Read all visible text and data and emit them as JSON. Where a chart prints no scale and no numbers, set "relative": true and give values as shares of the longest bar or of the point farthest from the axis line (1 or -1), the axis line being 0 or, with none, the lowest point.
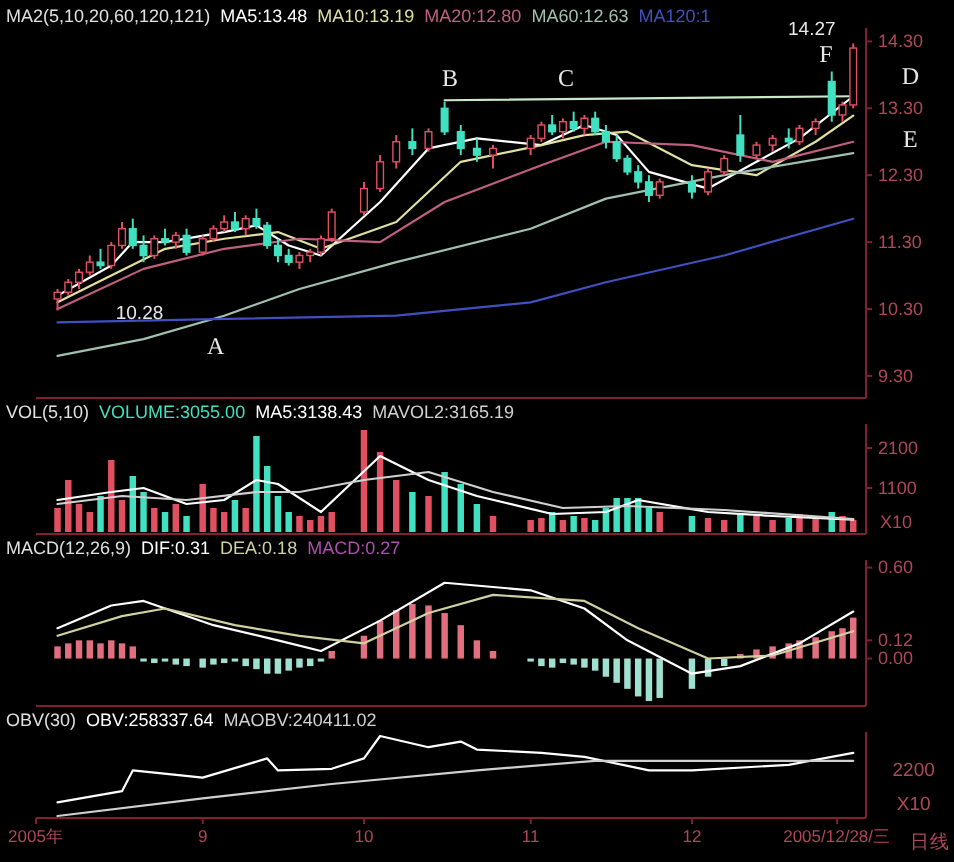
{
  "chart_data": [
    {
      "type": "candlestick",
      "title": "MA2(5,10,20,60,120,121)",
      "legend": "top left",
      "tick_labels": "y",
      "xlim": [
        "2005-08-01",
        "2006-01-02"
      ],
      "ylim": [
        9.0,
        14.5
      ],
      "yticks": [
        {
          "value": 9.3,
          "label": "9.30"
        },
        {
          "value": 10.3,
          "label": "10.30"
        },
        {
          "value": 11.3,
          "label": "11.30"
        },
        {
          "value": 12.3,
          "label": "12.30"
        },
        {
          "value": 13.3,
          "label": "13.30"
        },
        {
          "value": 14.3,
          "label": "14.30"
        }
      ],
      "x": [
        "2005-08-05",
        "2005-08-07",
        "2005-08-09",
        "2005-08-11",
        "2005-08-13",
        "2005-08-15",
        "2005-08-17",
        "2005-08-19",
        "2005-08-21",
        "2005-08-23",
        "2005-08-25",
        "2005-08-27",
        "2005-08-29",
        "2005-09-01",
        "2005-09-03",
        "2005-09-05",
        "2005-09-07",
        "2005-09-09",
        "2005-09-11",
        "2005-09-13",
        "2005-09-15",
        "2005-09-17",
        "2005-09-19",
        "2005-09-21",
        "2005-09-23",
        "2005-09-25",
        "2005-10-01",
        "2005-10-04",
        "2005-10-07",
        "2005-10-10",
        "2005-10-13",
        "2005-10-16",
        "2005-10-19",
        "2005-10-22",
        "2005-10-25",
        "2005-11-01",
        "2005-11-03",
        "2005-11-05",
        "2005-11-07",
        "2005-11-09",
        "2005-11-11",
        "2005-11-13",
        "2005-11-15",
        "2005-11-17",
        "2005-11-19",
        "2005-11-21",
        "2005-11-23",
        "2005-11-25",
        "2005-12-01",
        "2005-12-04",
        "2005-12-07",
        "2005-12-10",
        "2005-12-13",
        "2005-12-16",
        "2005-12-19",
        "2005-12-21",
        "2005-12-24",
        "2005-12-27",
        "2005-12-29",
        "2005-12-31"
      ],
      "ohlc": [
        [
          10.45,
          10.6,
          10.28,
          10.55
        ],
        [
          10.55,
          10.75,
          10.5,
          10.7
        ],
        [
          10.7,
          10.9,
          10.6,
          10.85
        ],
        [
          10.85,
          11.1,
          10.8,
          11.0
        ],
        [
          11.0,
          11.2,
          10.9,
          10.95
        ],
        [
          10.95,
          11.3,
          10.9,
          11.25
        ],
        [
          11.25,
          11.6,
          11.2,
          11.5
        ],
        [
          11.5,
          11.65,
          11.2,
          11.25
        ],
        [
          11.25,
          11.4,
          11.0,
          11.1
        ],
        [
          11.1,
          11.4,
          11.05,
          11.35
        ],
        [
          11.35,
          11.5,
          11.25,
          11.3
        ],
        [
          11.3,
          11.45,
          11.2,
          11.4
        ],
        [
          11.4,
          11.5,
          11.1,
          11.15
        ],
        [
          11.15,
          11.4,
          11.1,
          11.35
        ],
        [
          11.35,
          11.55,
          11.3,
          11.5
        ],
        [
          11.5,
          11.7,
          11.45,
          11.6
        ],
        [
          11.6,
          11.75,
          11.45,
          11.5
        ],
        [
          11.5,
          11.7,
          11.4,
          11.65
        ],
        [
          11.65,
          11.8,
          11.5,
          11.55
        ],
        [
          11.55,
          11.6,
          11.2,
          11.25
        ],
        [
          11.25,
          11.35,
          11.0,
          11.1
        ],
        [
          11.1,
          11.2,
          10.95,
          11.0
        ],
        [
          11.0,
          11.15,
          10.9,
          11.1
        ],
        [
          11.1,
          11.2,
          11.0,
          11.15
        ],
        [
          11.15,
          11.4,
          11.1,
          11.35
        ],
        [
          11.35,
          11.8,
          11.3,
          11.75
        ],
        [
          11.75,
          12.2,
          11.7,
          12.1
        ],
        [
          12.1,
          12.6,
          12.05,
          12.5
        ],
        [
          12.5,
          12.9,
          12.4,
          12.8
        ],
        [
          12.8,
          13.0,
          12.6,
          12.7
        ],
        [
          12.7,
          13.0,
          12.65,
          12.95
        ],
        [
          13.3,
          13.4,
          12.9,
          12.95
        ],
        [
          12.95,
          13.05,
          12.6,
          12.7
        ],
        [
          12.7,
          12.85,
          12.5,
          12.6
        ],
        [
          12.6,
          12.75,
          12.4,
          12.7
        ],
        [
          12.7,
          12.9,
          12.6,
          12.85
        ],
        [
          12.85,
          13.1,
          12.8,
          13.05
        ],
        [
          13.05,
          13.2,
          12.9,
          12.95
        ],
        [
          12.95,
          13.15,
          12.85,
          13.1
        ],
        [
          13.1,
          13.25,
          12.95,
          13.0
        ],
        [
          13.0,
          13.2,
          12.9,
          13.15
        ],
        [
          13.15,
          13.25,
          12.9,
          12.95
        ],
        [
          12.95,
          13.05,
          12.7,
          12.8
        ],
        [
          12.8,
          12.9,
          12.5,
          12.55
        ],
        [
          12.55,
          12.6,
          12.3,
          12.35
        ],
        [
          12.35,
          12.45,
          12.1,
          12.2
        ],
        [
          12.2,
          12.3,
          11.9,
          12.0
        ],
        [
          12.0,
          12.25,
          11.95,
          12.2
        ],
        [
          12.2,
          12.3,
          11.95,
          12.05
        ],
        [
          12.05,
          12.4,
          12.0,
          12.35
        ],
        [
          12.35,
          12.6,
          12.3,
          12.55
        ],
        [
          12.9,
          13.2,
          12.5,
          12.6
        ],
        [
          12.6,
          12.8,
          12.55,
          12.75
        ],
        [
          12.75,
          12.9,
          12.65,
          12.85
        ],
        [
          12.85,
          13.0,
          12.7,
          12.8
        ],
        [
          12.8,
          13.05,
          12.75,
          13.0
        ],
        [
          13.0,
          13.15,
          12.9,
          13.1
        ],
        [
          13.7,
          13.85,
          13.1,
          13.2
        ],
        [
          13.2,
          13.4,
          13.1,
          13.35
        ],
        [
          13.35,
          14.27,
          13.3,
          14.2
        ]
      ],
      "series": [
        {
          "type": "line",
          "name": "MA5:13.48",
          "color": "#ffffff",
          "x": [
            "2005-08-05",
            "2005-08-15",
            "2005-08-19",
            "2005-08-25",
            "2005-09-05",
            "2005-09-11",
            "2005-09-17",
            "2005-09-23",
            "2005-10-04",
            "2005-10-13",
            "2005-10-22",
            "2005-11-03",
            "2005-11-11",
            "2005-11-17",
            "2005-11-23",
            "2005-12-04",
            "2005-12-13",
            "2005-12-21",
            "2005-12-31"
          ],
          "values": [
            10.5,
            10.95,
            11.3,
            11.3,
            11.45,
            11.55,
            11.25,
            11.1,
            11.9,
            12.7,
            12.85,
            12.75,
            13.05,
            12.9,
            12.35,
            12.1,
            12.5,
            12.85,
            13.48
          ]
        },
        {
          "type": "line",
          "name": "MA10:13.19",
          "color": "#e0e0a0",
          "x": [
            "2005-08-05",
            "2005-08-15",
            "2005-08-25",
            "2005-09-05",
            "2005-09-15",
            "2005-09-23",
            "2005-10-07",
            "2005-10-19",
            "2005-11-03",
            "2005-11-11",
            "2005-11-19",
            "2005-12-01",
            "2005-12-13",
            "2005-12-24",
            "2005-12-31"
          ],
          "values": [
            10.4,
            10.8,
            11.2,
            11.35,
            11.45,
            11.2,
            11.6,
            12.5,
            12.75,
            12.9,
            12.95,
            12.45,
            12.3,
            12.8,
            13.19
          ]
        },
        {
          "type": "line",
          "name": "MA20:12.80",
          "color": "#c06080",
          "x": [
            "2005-08-05",
            "2005-08-21",
            "2005-09-05",
            "2005-09-19",
            "2005-10-04",
            "2005-10-16",
            "2005-11-03",
            "2005-11-15",
            "2005-12-01",
            "2005-12-16",
            "2005-12-31"
          ],
          "values": [
            10.3,
            10.9,
            11.2,
            11.35,
            11.3,
            11.9,
            12.45,
            12.8,
            12.75,
            12.5,
            12.8
          ]
        },
        {
          "type": "line",
          "name": "MA60:12.63",
          "color": "#a0c0b0",
          "x": [
            "2005-08-05",
            "2005-08-21",
            "2005-09-05",
            "2005-09-19",
            "2005-10-07",
            "2005-11-01",
            "2005-11-15",
            "2005-12-07",
            "2005-12-31"
          ],
          "values": [
            9.6,
            9.85,
            10.2,
            10.6,
            11.0,
            11.5,
            11.95,
            12.3,
            12.63
          ]
        },
        {
          "type": "line",
          "name": "MA120:1",
          "color": "#4050c0",
          "x": [
            "2005-08-05",
            "2005-09-03",
            "2005-10-07",
            "2005-11-01",
            "2005-11-15",
            "2005-12-07",
            "2005-12-31"
          ],
          "values": [
            10.1,
            10.15,
            10.2,
            10.4,
            10.7,
            11.1,
            11.65
          ]
        },
        {
          "type": "line",
          "color": "#c8e8c8",
          "x": [
            "2005-10-16",
            "2005-12-31"
          ],
          "values": [
            13.42,
            13.48
          ]
        }
      ],
      "annotations": [
        "10.28",
        "14.27",
        "A",
        "B",
        "C",
        "D",
        "E",
        "F"
      ]
    },
    {
      "type": "bar",
      "title": "VOL(5,10)",
      "legend": "top left",
      "tick_labels": "y",
      "xlim": [
        "2005-08-01",
        "2006-01-02"
      ],
      "ylim": [
        0,
        2700
      ],
      "yticks": [
        1100,
        2100
      ],
      "ylabel": "X10",
      "x": [
        "2005-08-05",
        "2005-08-07",
        "2005-08-09",
        "2005-08-11",
        "2005-08-13",
        "2005-08-15",
        "2005-08-17",
        "2005-08-19",
        "2005-08-21",
        "2005-08-23",
        "2005-08-25",
        "2005-08-27",
        "2005-08-29",
        "2005-09-01",
        "2005-09-03",
        "2005-09-05",
        "2005-09-07",
        "2005-09-09",
        "2005-09-11",
        "2005-09-13",
        "2005-09-15",
        "2005-09-17",
        "2005-09-19",
        "2005-09-21",
        "2005-09-23",
        "2005-09-25",
        "2005-10-01",
        "2005-10-04",
        "2005-10-07",
        "2005-10-10",
        "2005-10-13",
        "2005-10-16",
        "2005-10-19",
        "2005-10-22",
        "2005-10-25",
        "2005-11-01",
        "2005-11-03",
        "2005-11-05",
        "2005-11-07",
        "2005-11-09",
        "2005-11-11",
        "2005-11-13",
        "2005-11-15",
        "2005-11-17",
        "2005-11-19",
        "2005-11-21",
        "2005-11-23",
        "2005-11-25",
        "2005-12-01",
        "2005-12-04",
        "2005-12-07",
        "2005-12-10",
        "2005-12-13",
        "2005-12-16",
        "2005-12-19",
        "2005-12-21",
        "2005-12-24",
        "2005-12-27",
        "2005-12-29",
        "2005-12-31"
      ],
      "series": [
        {
          "type": "bar",
          "name": "VOLUME:3055.00",
          "color": "#40e0c0",
          "values": [
            600,
            1300,
            700,
            500,
            900,
            1800,
            800,
            1400,
            1000,
            600,
            500,
            700,
            400,
            1200,
            600,
            500,
            800,
            600,
            2400,
            1650,
            900,
            500,
            400,
            300,
            400,
            500,
            2550,
            2000,
            1300,
            1000,
            900,
            1500,
            1200,
            700,
            400,
            300,
            350,
            500,
            300,
            400,
            350,
            300,
            600,
            850,
            850,
            850,
            600,
            500,
            400,
            350,
            300,
            450,
            400,
            300,
            350,
            450,
            350,
            500,
            400,
            300
          ],
          "colors": [
            "#e05060",
            "#e05060",
            "#e05060",
            "#e05060",
            "#40e0c0",
            "#e05060",
            "#e05060",
            "#40e0c0",
            "#40e0c0",
            "#e05060",
            "#40e0c0",
            "#e05060",
            "#40e0c0",
            "#e05060",
            "#e05060",
            "#e05060",
            "#40e0c0",
            "#e05060",
            "#40e0c0",
            "#40e0c0",
            "#40e0c0",
            "#40e0c0",
            "#e05060",
            "#e05060",
            "#e05060",
            "#e05060",
            "#e05060",
            "#e05060",
            "#e05060",
            "#40e0c0",
            "#e05060",
            "#40e0c0",
            "#40e0c0",
            "#40e0c0",
            "#e05060",
            "#e05060",
            "#e05060",
            "#40e0c0",
            "#e05060",
            "#40e0c0",
            "#e05060",
            "#40e0c0",
            "#40e0c0",
            "#40e0c0",
            "#40e0c0",
            "#40e0c0",
            "#40e0c0",
            "#e05060",
            "#40e0c0",
            "#e05060",
            "#e05060",
            "#40e0c0",
            "#e05060",
            "#e05060",
            "#40e0c0",
            "#e05060",
            "#e05060",
            "#40e0c0",
            "#e05060",
            "#e05060"
          ]
        },
        {
          "type": "line",
          "name": "MA5:3138.43",
          "color": "#ffffff",
          "x": [
            "2005-08-05",
            "2005-08-15",
            "2005-08-21",
            "2005-08-29",
            "2005-09-05",
            "2005-09-11",
            "2005-09-15",
            "2005-09-23",
            "2005-10-04",
            "2005-10-13",
            "2005-10-22",
            "2005-11-05",
            "2005-11-15",
            "2005-11-21",
            "2005-12-04",
            "2005-12-16",
            "2005-12-31"
          ],
          "values": [
            800,
            1000,
            1100,
            700,
            800,
            1300,
            1200,
            500,
            1900,
            1300,
            900,
            450,
            500,
            800,
            500,
            400,
            310
          ]
        },
        {
          "type": "line",
          "name": "MAVOL2:3165.19",
          "color": "#d0d0d0",
          "x": [
            "2005-08-05",
            "2005-08-17",
            "2005-08-29",
            "2005-09-11",
            "2005-09-19",
            "2005-10-01",
            "2005-10-13",
            "2005-10-25",
            "2005-11-07",
            "2005-11-19",
            "2005-12-07",
            "2005-12-31"
          ],
          "values": [
            700,
            900,
            800,
            1000,
            1000,
            1300,
            1500,
            1000,
            600,
            650,
            550,
            320
          ]
        }
      ]
    },
    {
      "type": "bar",
      "title": "MACD(12,26,9)",
      "legend": "top left",
      "tick_labels": "y",
      "xlim": [
        "2005-08-01",
        "2006-01-02"
      ],
      "ylim": [
        -0.3,
        0.65
      ],
      "yticks": [
        {
          "value": 0,
          "label": "0.00"
        },
        {
          "value": 0.12,
          "label": "0.12"
        },
        {
          "value": 0.6,
          "label": "0.60"
        }
      ],
      "x": [
        "2005-08-05",
        "2005-08-07",
        "2005-08-09",
        "2005-08-11",
        "2005-08-13",
        "2005-08-15",
        "2005-08-17",
        "2005-08-19",
        "2005-08-21",
        "2005-08-23",
        "2005-08-25",
        "2005-08-27",
        "2005-08-29",
        "2005-09-01",
        "2005-09-03",
        "2005-09-05",
        "2005-09-07",
        "2005-09-09",
        "2005-09-11",
        "2005-09-13",
        "2005-09-15",
        "2005-09-17",
        "2005-09-19",
        "2005-09-21",
        "2005-09-23",
        "2005-09-25",
        "2005-10-01",
        "2005-10-04",
        "2005-10-07",
        "2005-10-10",
        "2005-10-13",
        "2005-10-16",
        "2005-10-19",
        "2005-10-22",
        "2005-10-25",
        "2005-11-01",
        "2005-11-03",
        "2005-11-05",
        "2005-11-07",
        "2005-11-09",
        "2005-11-11",
        "2005-11-13",
        "2005-11-15",
        "2005-11-17",
        "2005-11-19",
        "2005-11-21",
        "2005-11-23",
        "2005-11-25",
        "2005-12-01",
        "2005-12-04",
        "2005-12-07",
        "2005-12-10",
        "2005-12-13",
        "2005-12-16",
        "2005-12-19",
        "2005-12-21",
        "2005-12-24",
        "2005-12-27",
        "2005-12-29",
        "2005-12-31"
      ],
      "series": [
        {
          "type": "line",
          "name": "DIF:0.31",
          "color": "#ffffff",
          "x": [
            "2005-08-05",
            "2005-08-15",
            "2005-08-21",
            "2005-09-03",
            "2005-09-15",
            "2005-09-23",
            "2005-10-04",
            "2005-10-16",
            "2005-11-01",
            "2005-11-11",
            "2005-11-19",
            "2005-12-01",
            "2005-12-10",
            "2005-12-21",
            "2005-12-31"
          ],
          "values": [
            0.2,
            0.35,
            0.38,
            0.22,
            0.12,
            0.05,
            0.25,
            0.5,
            0.45,
            0.33,
            0.12,
            -0.1,
            -0.05,
            0.1,
            0.31
          ]
        },
        {
          "type": "line",
          "name": "DEA:0.18",
          "color": "#d0d0a0",
          "x": [
            "2005-08-05",
            "2005-08-17",
            "2005-08-25",
            "2005-09-07",
            "2005-09-19",
            "2005-10-01",
            "2005-10-13",
            "2005-10-25",
            "2005-11-11",
            "2005-11-21",
            "2005-12-04",
            "2005-12-16",
            "2005-12-31"
          ],
          "values": [
            0.15,
            0.28,
            0.33,
            0.22,
            0.15,
            0.1,
            0.3,
            0.42,
            0.38,
            0.2,
            0.0,
            0.02,
            0.18
          ]
        },
        {
          "type": "bar",
          "name": "MACD:0.27",
          "color": "#b050b0",
          "values": [
            0.08,
            0.1,
            0.12,
            0.12,
            0.1,
            0.12,
            0.1,
            0.08,
            -0.02,
            -0.03,
            -0.02,
            -0.04,
            -0.05,
            -0.06,
            -0.04,
            -0.03,
            -0.02,
            -0.05,
            -0.07,
            -0.1,
            -0.1,
            -0.08,
            -0.06,
            -0.05,
            -0.02,
            0.05,
            0.15,
            0.25,
            0.32,
            0.36,
            0.35,
            0.3,
            0.22,
            0.12,
            0.05,
            -0.02,
            -0.05,
            -0.06,
            -0.03,
            -0.04,
            -0.06,
            -0.08,
            -0.12,
            -0.16,
            -0.2,
            -0.25,
            -0.28,
            -0.26,
            -0.2,
            -0.12,
            -0.05,
            0.03,
            0.06,
            0.08,
            0.1,
            0.12,
            0.14,
            0.18,
            0.2,
            0.27
          ],
          "colors": [
            "#e07080",
            "#e07080",
            "#e07080",
            "#e07080",
            "#e07080",
            "#e07080",
            "#e07080",
            "#e07080",
            "#a0e0d0",
            "#a0e0d0",
            "#a0e0d0",
            "#a0e0d0",
            "#a0e0d0",
            "#a0e0d0",
            "#a0e0d0",
            "#a0e0d0",
            "#a0e0d0",
            "#a0e0d0",
            "#a0e0d0",
            "#a0e0d0",
            "#a0e0d0",
            "#a0e0d0",
            "#a0e0d0",
            "#a0e0d0",
            "#a0e0d0",
            "#e07080",
            "#e07080",
            "#e07080",
            "#e07080",
            "#e07080",
            "#e07080",
            "#e07080",
            "#e07080",
            "#e07080",
            "#e07080",
            "#a0e0d0",
            "#a0e0d0",
            "#a0e0d0",
            "#a0e0d0",
            "#a0e0d0",
            "#a0e0d0",
            "#a0e0d0",
            "#a0e0d0",
            "#a0e0d0",
            "#a0e0d0",
            "#a0e0d0",
            "#a0e0d0",
            "#a0e0d0",
            "#a0e0d0",
            "#a0e0d0",
            "#a0e0d0",
            "#e07080",
            "#e07080",
            "#e07080",
            "#e07080",
            "#e07080",
            "#e07080",
            "#e07080",
            "#e07080",
            "#e07080"
          ]
        }
      ]
    },
    {
      "type": "line",
      "title": "OBV(30)",
      "legend": "top left",
      "relative": true,
      "tick_labels": "x",
      "xlim": [
        "2005-08-01",
        "2006-01-02"
      ],
      "xticks": [
        {
          "value": "2005-08-01",
          "label": "2005年"
        },
        {
          "value": "2005-09-01",
          "label": "9"
        },
        {
          "value": "2005-10-01",
          "label": "10"
        },
        {
          "value": "2005-11-01",
          "label": "11"
        },
        {
          "value": "2005-12-01",
          "label": "12"
        },
        {
          "value": "2005-12-28",
          "label": "2005/12/28/三"
        }
      ],
      "series": [
        {
          "name": "OBV:258337.64",
          "color": "#ffffff",
          "x": [
            "2005-08-05",
            "2005-08-17",
            "2005-08-19",
            "2005-09-01",
            "2005-09-13",
            "2005-09-15",
            "2005-09-25",
            "2005-10-01",
            "2005-10-04",
            "2005-10-13",
            "2005-10-19",
            "2005-10-22",
            "2005-11-03",
            "2005-11-11",
            "2005-11-23",
            "2005-12-01",
            "2005-12-19",
            "2005-12-31"
          ],
          "values": [
            0.17,
            0.31,
            0.57,
            0.48,
            0.72,
            0.57,
            0.59,
            0.72,
            1.0,
            0.86,
            0.93,
            0.83,
            0.79,
            0.74,
            0.57,
            0.57,
            0.64,
            0.79
          ]
        },
        {
          "name": "MAOBV:240411.02",
          "color": "#d0d0d0",
          "x": [
            "2005-08-05",
            "2005-09-01",
            "2005-09-25",
            "2005-10-22",
            "2005-11-13",
            "2005-12-01",
            "2005-12-31"
          ],
          "values": [
            0,
            0.22,
            0.4,
            0.57,
            0.69,
            0.69,
            0.69
          ]
        }
      ],
      "annotations": [
        "2200",
        "X10",
        "日线"
      ]
    }
  ]
}
